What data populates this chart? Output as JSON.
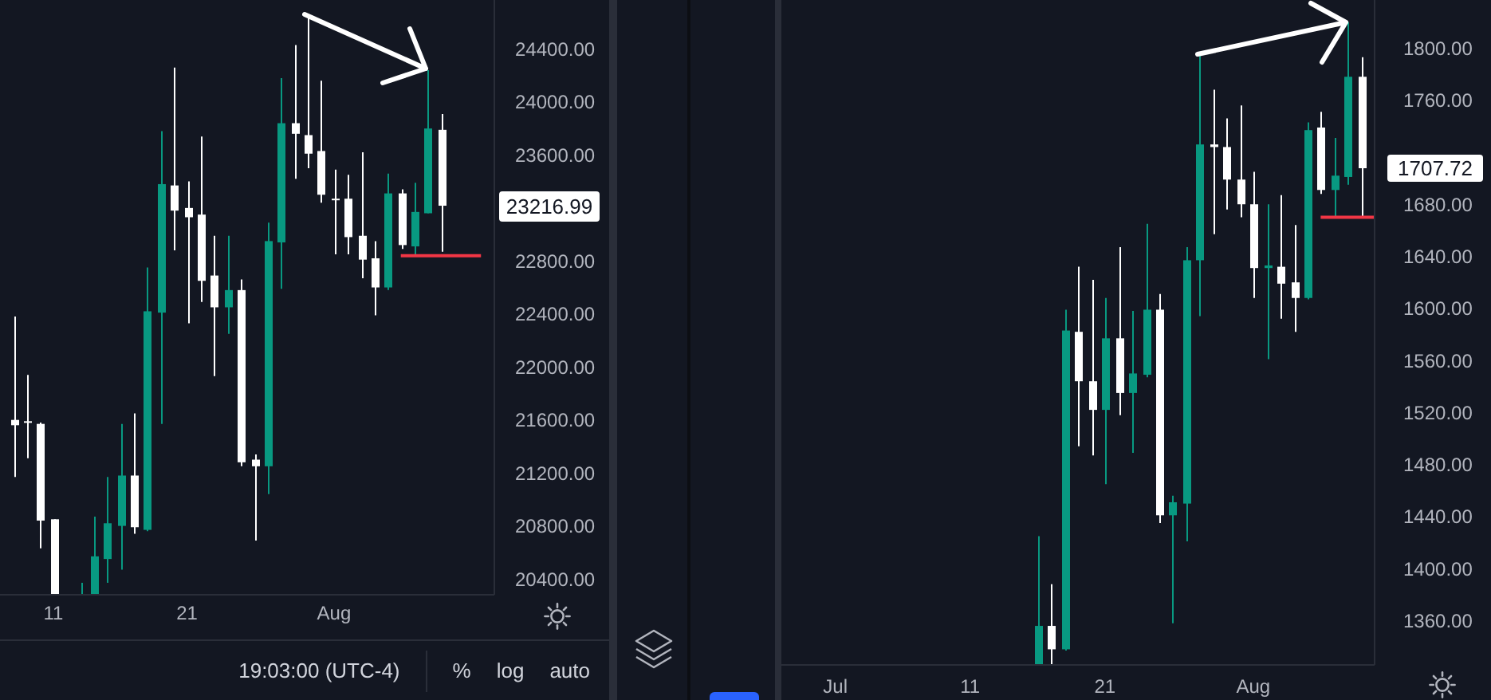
{
  "chart_data": [
    {
      "type": "candlestick",
      "x": [
        "--07-08",
        "--07-09",
        "--07-10",
        "--07-11",
        "--07-13",
        "--07-14",
        "--07-15",
        "--07-16",
        "--07-17",
        "--07-18",
        "--07-19",
        "--07-20",
        "--07-21",
        "--07-22",
        "--07-23",
        "--07-24",
        "--07-25",
        "--07-26",
        "--07-27",
        "--07-28",
        "--07-29",
        "--07-30",
        "--07-31",
        "--08-01",
        "--08-02",
        "--08-03",
        "--08-04",
        "--08-05",
        "--08-06",
        "--08-07",
        "--08-08",
        "--08-09"
      ],
      "ohlc": [
        [
          21600,
          22380,
          21170,
          21560
        ],
        [
          21590,
          21940,
          21310,
          21580
        ],
        [
          21570,
          21580,
          20630,
          20840
        ],
        [
          20850,
          20850,
          20280,
          20280
        ],
        [
          20280,
          20370,
          20280,
          20280
        ],
        [
          20280,
          20870,
          20280,
          20570
        ],
        [
          20550,
          21170,
          20370,
          20820
        ],
        [
          20800,
          21570,
          20470,
          21180
        ],
        [
          21180,
          21650,
          20740,
          20790
        ],
        [
          20770,
          22750,
          20760,
          22420
        ],
        [
          22410,
          23780,
          21570,
          23380
        ],
        [
          23370,
          24260,
          22880,
          23180
        ],
        [
          23200,
          23400,
          22330,
          23130
        ],
        [
          23150,
          23740,
          22490,
          22650
        ],
        [
          22690,
          22990,
          21930,
          22450
        ],
        [
          22450,
          22990,
          22250,
          22580
        ],
        [
          22580,
          22660,
          21250,
          21280
        ],
        [
          21300,
          21340,
          20690,
          21250
        ],
        [
          21250,
          23090,
          21040,
          22950
        ],
        [
          22940,
          24180,
          22590,
          23840
        ],
        [
          23840,
          24430,
          23420,
          23760
        ],
        [
          23750,
          24650,
          23500,
          23610
        ],
        [
          23630,
          24160,
          23240,
          23300
        ],
        [
          23270,
          23490,
          22850,
          23260
        ],
        [
          23270,
          23450,
          22850,
          22980
        ],
        [
          22990,
          23620,
          22670,
          22810
        ],
        [
          22820,
          22950,
          22390,
          22600
        ],
        [
          22600,
          23460,
          22580,
          23310
        ],
        [
          23310,
          23340,
          22890,
          22920
        ],
        [
          22910,
          23390,
          22840,
          23170
        ],
        [
          23160,
          24240,
          23160,
          23800
        ],
        [
          23790,
          23910,
          22870,
          23216.99
        ]
      ],
      "colors": [
        "#ffffff",
        "#ffffff",
        "#ffffff",
        "#ffffff",
        "#089981",
        "#089981",
        "#089981",
        "#089981",
        "#ffffff",
        "#089981",
        "#089981",
        "#ffffff",
        "#ffffff",
        "#ffffff",
        "#ffffff",
        "#089981",
        "#ffffff",
        "#ffffff",
        "#089981",
        "#089981",
        "#ffffff",
        "#ffffff",
        "#ffffff",
        "#ffffff",
        "#ffffff",
        "#ffffff",
        "#ffffff",
        "#089981",
        "#ffffff",
        "#089981",
        "#089981",
        "#ffffff"
      ],
      "value_labels": [
        null,
        null,
        null,
        null,
        null,
        null,
        null,
        null,
        null,
        null,
        null,
        null,
        null,
        null,
        null,
        null,
        null,
        null,
        null,
        null,
        null,
        null,
        null,
        null,
        null,
        null,
        null,
        null,
        null,
        null,
        null,
        "23216.99"
      ],
      "series": [
        {
          "type": "line",
          "color": "#f23645",
          "x": [
            "--08-06",
            "--08-12"
          ],
          "values": [
            22840,
            22840
          ]
        }
      ],
      "xlim": [
        "--07-07",
        "--08-13"
      ],
      "xticks": [
        {
          "value": "--07-11",
          "label": "11"
        },
        {
          "value": "--07-21",
          "label": "21"
        },
        {
          "value": "--08-01",
          "label": "Aug"
        }
      ],
      "ylim": [
        20280,
        24770
      ],
      "yticks": [
        {
          "value": 20400,
          "label": "20400.00"
        },
        {
          "value": 20800,
          "label": "20800.00"
        },
        {
          "value": 21200,
          "label": "21200.00"
        },
        {
          "value": 21600,
          "label": "21600.00"
        },
        {
          "value": 22000,
          "label": "22000.00"
        },
        {
          "value": 22400,
          "label": "22400.00"
        },
        {
          "value": 22800,
          "label": "22800.00"
        },
        {
          "value": 23600,
          "label": "23600.00"
        },
        {
          "value": 24000,
          "label": "24000.00"
        },
        {
          "value": 24400,
          "label": "24400.00"
        }
      ],
      "annotations": [
        "19:03:00 (UTC-4)",
        "%",
        "log",
        "auto"
      ]
    },
    {
      "type": "candlestick",
      "x": [
        "--07-16",
        "--07-17",
        "--07-18",
        "--07-19",
        "--07-20",
        "--07-21",
        "--07-22",
        "--07-23",
        "--07-24",
        "--07-25",
        "--07-26",
        "--07-27",
        "--07-28",
        "--07-29",
        "--07-30",
        "--07-31",
        "--08-01",
        "--08-02",
        "--08-03",
        "--08-04",
        "--08-05",
        "--08-06",
        "--08-07",
        "--08-08",
        "--08-09"
      ],
      "ohlc": [
        [
          1326,
          1425,
          1326,
          1356
        ],
        [
          1356,
          1388,
          1326,
          1338
        ],
        [
          1338,
          1599,
          1337,
          1583
        ],
        [
          1582,
          1632,
          1494,
          1544
        ],
        [
          1544,
          1622,
          1487,
          1522
        ],
        [
          1522,
          1608,
          1465,
          1577
        ],
        [
          1577,
          1647,
          1518,
          1535
        ],
        [
          1535,
          1598,
          1489,
          1550
        ],
        [
          1549,
          1665,
          1547,
          1599
        ],
        [
          1599,
          1611,
          1435,
          1441
        ],
        [
          1441,
          1456,
          1358,
          1451
        ],
        [
          1450,
          1647,
          1421,
          1637
        ],
        [
          1637,
          1795,
          1594,
          1726
        ],
        [
          1726,
          1768,
          1657,
          1724
        ],
        [
          1724,
          1746,
          1676,
          1699
        ],
        [
          1699,
          1756,
          1670,
          1680
        ],
        [
          1680,
          1705,
          1608,
          1631
        ],
        [
          1631,
          1680,
          1561,
          1633
        ],
        [
          1632,
          1687,
          1592,
          1619
        ],
        [
          1620,
          1664,
          1582,
          1608
        ],
        [
          1608,
          1743,
          1607,
          1737
        ],
        [
          1739,
          1751,
          1688,
          1691
        ],
        [
          1691,
          1731,
          1670,
          1702
        ],
        [
          1701,
          1820,
          1695,
          1778
        ],
        [
          1778,
          1793,
          1670,
          1707.72
        ]
      ],
      "colors": [
        "#089981",
        "#ffffff",
        "#089981",
        "#ffffff",
        "#ffffff",
        "#089981",
        "#ffffff",
        "#089981",
        "#089981",
        "#ffffff",
        "#089981",
        "#089981",
        "#089981",
        "#ffffff",
        "#ffffff",
        "#ffffff",
        "#ffffff",
        "#089981",
        "#ffffff",
        "#ffffff",
        "#089981",
        "#ffffff",
        "#089981",
        "#089981",
        "#ffffff"
      ],
      "value_labels": [
        null,
        null,
        null,
        null,
        null,
        null,
        null,
        null,
        null,
        null,
        null,
        null,
        null,
        null,
        null,
        null,
        null,
        null,
        null,
        null,
        null,
        null,
        null,
        null,
        "1707.72"
      ],
      "series": [
        {
          "type": "line",
          "color": "#f23645",
          "x": [
            "--08-06",
            "--08-10"
          ],
          "values": [
            1670,
            1670
          ]
        }
      ],
      "xlim": [
        "--06-27",
        "--08-10"
      ],
      "xticks": [
        {
          "value": "--07-01",
          "label": "Jul"
        },
        {
          "value": "--07-11",
          "label": "11"
        },
        {
          "value": "--07-21",
          "label": "21"
        },
        {
          "value": "--08-01",
          "label": "Aug"
        }
      ],
      "ylim": [
        1326,
        1837
      ],
      "yticks": [
        {
          "value": 1360,
          "label": "1360.00"
        },
        {
          "value": 1400,
          "label": "1400.00"
        },
        {
          "value": 1440,
          "label": "1440.00"
        },
        {
          "value": 1480,
          "label": "1480.00"
        },
        {
          "value": 1520,
          "label": "1520.00"
        },
        {
          "value": 1560,
          "label": "1560.00"
        },
        {
          "value": 1600,
          "label": "1600.00"
        },
        {
          "value": 1640,
          "label": "1640.00"
        },
        {
          "value": 1680,
          "label": "1680.00"
        },
        {
          "value": 1760,
          "label": "1760.00"
        },
        {
          "value": 1800,
          "label": "1800.00"
        }
      ]
    }
  ]
}
